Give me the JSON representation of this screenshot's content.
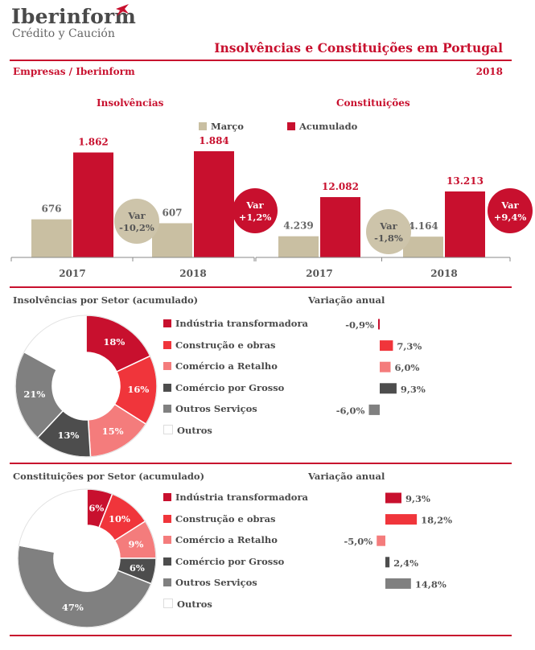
{
  "logo": {
    "name": "Iberinform",
    "tagline": "Crédito y Caución",
    "icon": "plane-icon"
  },
  "header": {
    "title": "Insolvências e Constituições em Portugal",
    "subtitle": "Empresas / Iberinform",
    "year": "2018"
  },
  "legend_top": [
    {
      "label": "Março",
      "color": "#c9bfa2"
    },
    {
      "label": "Acumulado",
      "color": "#c8102e"
    }
  ],
  "colors": {
    "marco": "#c9bfa2",
    "acumulado": "#c8102e",
    "bubble_grey": "#cdc4aa"
  },
  "chart_data": [
    {
      "type": "bar",
      "title": "Insolvências",
      "categories": [
        "2017",
        "2018"
      ],
      "series": [
        {
          "name": "Março",
          "values": [
            676,
            607
          ],
          "labels": [
            "676",
            "607"
          ]
        },
        {
          "name": "Acumulado",
          "values": [
            1862,
            1884
          ],
          "labels": [
            "1.862",
            "1.884"
          ]
        }
      ],
      "annotations": [
        {
          "line1": "Var",
          "line2": "-10,2%",
          "series": "Março"
        },
        {
          "line1": "Var",
          "line2": "+1,2%",
          "series": "Acumulado"
        }
      ]
    },
    {
      "type": "bar",
      "title": "Constituições",
      "categories": [
        "2017",
        "2018"
      ],
      "series": [
        {
          "name": "Março",
          "values": [
            4239,
            4164
          ],
          "labels": [
            "4.239",
            "4.164"
          ]
        },
        {
          "name": "Acumulado",
          "values": [
            12082,
            13213
          ],
          "labels": [
            "12.082",
            "13.213"
          ]
        }
      ],
      "annotations": [
        {
          "line1": "Var",
          "line2": "-1,8%",
          "series": "Março"
        },
        {
          "line1": "Var",
          "line2": "+9,4%",
          "series": "Acumulado"
        }
      ]
    },
    {
      "type": "pie",
      "title": "Insolvências por Setor (acumulado)",
      "variation_title": "Variação anual",
      "slices": [
        {
          "label": "Indústria transformadora",
          "value": 18,
          "value_label": "18%",
          "color": "#c8102e",
          "variation": -0.9,
          "variation_label": "-0,9%"
        },
        {
          "label": "Construção e obras",
          "value": 16,
          "value_label": "16%",
          "color": "#f0353b",
          "variation": 7.3,
          "variation_label": "7,3%"
        },
        {
          "label": "Comércio a Retalho",
          "value": 15,
          "value_label": "15%",
          "color": "#f47c7c",
          "variation": 6.0,
          "variation_label": "6,0%"
        },
        {
          "label": "Comércio por Grosso",
          "value": 13,
          "value_label": "13%",
          "color": "#4d4d4d",
          "variation": 9.3,
          "variation_label": "9,3%"
        },
        {
          "label": "Outros Serviços",
          "value": 21,
          "value_label": "21%",
          "color": "#808080",
          "variation": -6.0,
          "variation_label": "-6,0%"
        },
        {
          "label": "Outros",
          "value": 17,
          "value_label": "",
          "color": "#ffffff",
          "variation": null,
          "variation_label": ""
        }
      ]
    },
    {
      "type": "pie",
      "title": "Constituições por Setor (acumulado)",
      "variation_title": "Variação anual",
      "slices": [
        {
          "label": "Indústria transformadora",
          "value": 6,
          "value_label": "6%",
          "color": "#c8102e",
          "variation": 9.3,
          "variation_label": "9,3%"
        },
        {
          "label": "Construção e obras",
          "value": 10,
          "value_label": "10%",
          "color": "#f0353b",
          "variation": 18.2,
          "variation_label": "18,2%"
        },
        {
          "label": "Comércio a Retalho",
          "value": 9,
          "value_label": "9%",
          "color": "#f47c7c",
          "variation": -5.0,
          "variation_label": "-5,0%"
        },
        {
          "label": "Comércio por Grosso",
          "value": 6,
          "value_label": "6%",
          "color": "#4d4d4d",
          "variation": 2.4,
          "variation_label": "2,4%"
        },
        {
          "label": "Outros Serviços",
          "value": 47,
          "value_label": "47%",
          "color": "#808080",
          "variation": 14.8,
          "variation_label": "14,8%"
        },
        {
          "label": "Outros",
          "value": 22,
          "value_label": "",
          "color": "#ffffff",
          "variation": null,
          "variation_label": ""
        }
      ]
    }
  ]
}
